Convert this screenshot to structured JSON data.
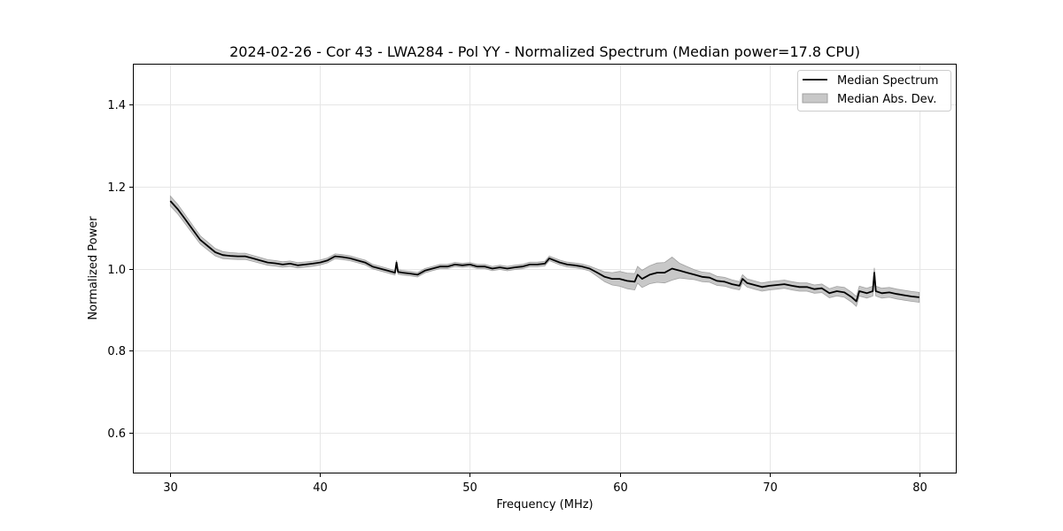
{
  "chart_data": {
    "type": "line",
    "title": "2024-02-26 - Cor 43 - LWA284 - Pol YY - Normalized Spectrum (Median power=17.8 CPU)",
    "xlabel": "Frequency (MHz)",
    "ylabel": "Normalized Power",
    "xlim": [
      27.5,
      82.5
    ],
    "ylim": [
      0.5,
      1.5
    ],
    "xticks": [
      30,
      40,
      50,
      60,
      70,
      80
    ],
    "yticks": [
      0.6,
      0.8,
      1.0,
      1.2,
      1.4
    ],
    "grid": true,
    "legend_position": "top-right",
    "legend": [
      "Median Spectrum",
      "Median Abs. Dev."
    ],
    "colors": {
      "line": "#000000",
      "band": "#c8c8c8",
      "band_edge": "#a0a0a0",
      "grid": "#e6e6e6"
    },
    "series": [
      {
        "name": "Median Spectrum",
        "x": [
          30.0,
          30.5,
          31.0,
          31.5,
          32.0,
          32.5,
          33.0,
          33.5,
          34.0,
          34.5,
          35.0,
          35.5,
          36.0,
          36.5,
          37.0,
          37.5,
          38.0,
          38.5,
          39.0,
          39.5,
          40.0,
          40.5,
          41.0,
          41.5,
          42.0,
          42.5,
          43.0,
          43.5,
          44.0,
          44.5,
          45.0,
          45.1,
          45.2,
          45.5,
          46.0,
          46.5,
          47.0,
          47.5,
          48.0,
          48.5,
          49.0,
          49.5,
          50.0,
          50.5,
          51.0,
          51.5,
          52.0,
          52.5,
          53.0,
          53.5,
          54.0,
          54.5,
          55.0,
          55.3,
          55.5,
          56.0,
          56.5,
          57.0,
          57.5,
          58.0,
          58.5,
          59.0,
          59.5,
          60.0,
          60.5,
          61.0,
          61.2,
          61.5,
          62.0,
          62.5,
          63.0,
          63.5,
          64.0,
          64.5,
          65.0,
          65.5,
          66.0,
          66.5,
          67.0,
          67.5,
          68.0,
          68.2,
          68.5,
          69.0,
          69.5,
          70.0,
          70.5,
          71.0,
          71.5,
          72.0,
          72.5,
          73.0,
          73.5,
          74.0,
          74.5,
          75.0,
          75.5,
          75.8,
          76.0,
          76.5,
          76.9,
          77.0,
          77.1,
          77.5,
          78.0,
          78.5,
          79.0,
          79.5,
          80.0
        ],
        "values": [
          1.165,
          1.145,
          1.12,
          1.095,
          1.07,
          1.055,
          1.04,
          1.033,
          1.031,
          1.03,
          1.03,
          1.025,
          1.02,
          1.015,
          1.013,
          1.01,
          1.012,
          1.008,
          1.01,
          1.012,
          1.015,
          1.02,
          1.03,
          1.028,
          1.025,
          1.02,
          1.015,
          1.005,
          1.0,
          0.995,
          0.99,
          1.015,
          0.992,
          0.99,
          0.988,
          0.985,
          0.995,
          1.0,
          1.005,
          1.005,
          1.01,
          1.008,
          1.01,
          1.005,
          1.005,
          1.0,
          1.003,
          1.0,
          1.003,
          1.005,
          1.01,
          1.01,
          1.012,
          1.025,
          1.022,
          1.015,
          1.01,
          1.008,
          1.005,
          1.0,
          0.99,
          0.98,
          0.975,
          0.975,
          0.97,
          0.968,
          0.985,
          0.975,
          0.985,
          0.99,
          0.99,
          1.0,
          0.995,
          0.99,
          0.985,
          0.98,
          0.978,
          0.97,
          0.968,
          0.962,
          0.958,
          0.975,
          0.965,
          0.96,
          0.955,
          0.958,
          0.96,
          0.962,
          0.958,
          0.955,
          0.955,
          0.95,
          0.952,
          0.94,
          0.945,
          0.942,
          0.93,
          0.92,
          0.945,
          0.94,
          0.945,
          0.99,
          0.945,
          0.94,
          0.942,
          0.938,
          0.935,
          0.932,
          0.93
        ]
      },
      {
        "name": "Median Abs. Dev.",
        "x": [
          30.0,
          32.0,
          34.0,
          36.0,
          40.0,
          50.0,
          58.0,
          59.0,
          60.0,
          61.0,
          62.0,
          63.0,
          63.5,
          64.0,
          65.0,
          68.0,
          70.0,
          73.0,
          75.0,
          77.0,
          80.0
        ],
        "values": [
          0.012,
          0.01,
          0.008,
          0.007,
          0.006,
          0.005,
          0.006,
          0.012,
          0.018,
          0.02,
          0.022,
          0.025,
          0.028,
          0.018,
          0.012,
          0.01,
          0.01,
          0.01,
          0.012,
          0.012,
          0.012
        ]
      }
    ]
  }
}
